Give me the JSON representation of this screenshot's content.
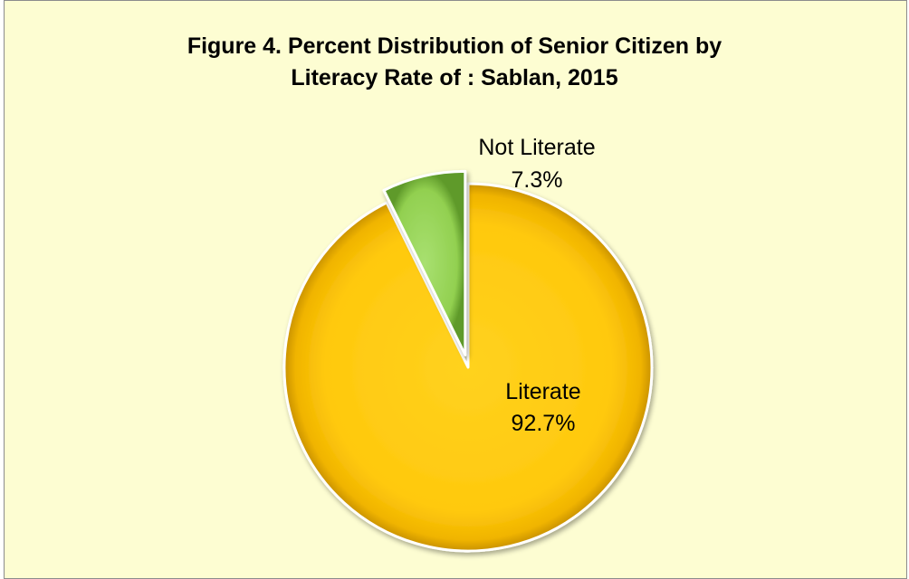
{
  "chart_data": {
    "type": "pie",
    "title_lines": [
      "Figure 4. Percent Distribution of Senior Citizen by",
      "Literacy Rate of : Sablan, 2015"
    ],
    "slices": [
      {
        "label": "Literate",
        "value": 92.7,
        "display": "92.7%",
        "color": "#ffc90e",
        "exploded": false
      },
      {
        "label": "Not Literate",
        "value": 7.3,
        "display": "7.3%",
        "color": "#92d050",
        "exploded": true
      }
    ],
    "legend": "none",
    "data_labels": "category-and-percent"
  }
}
